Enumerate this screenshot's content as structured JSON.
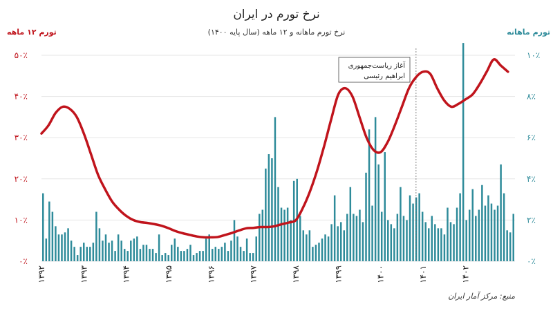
{
  "chart_data": {
    "type": "bar+line",
    "title": "نرخ تورم در ایران",
    "subtitle": "نرخ تورم ماهانه و ۱۲ ماهه (سال پایه ۱۴۰۰)",
    "left_axis_title": "تورم ۱۲ ماهه",
    "right_axis_title": "تورم ماهانه",
    "left_ylim": [
      0,
      50
    ],
    "right_ylim": [
      0,
      10
    ],
    "left_ticks": [
      "۰٪",
      "۱۰٪",
      "۲۰٪",
      "۳۰٪",
      "۴۰٪",
      "۵۰٪"
    ],
    "right_ticks": [
      "۰٪",
      "۲٪",
      "۴٪",
      "۶٪",
      "۸٪",
      "۱۰٪"
    ],
    "x_year_labels": [
      "۱۳۹۲",
      "۱۳۹۳",
      "۱۳۹۴",
      "۱۳۹۵",
      "۱۳۹۶",
      "۱۳۹۷",
      "۱۳۹۸",
      "۱۳۹۹",
      "۱۴۰۰",
      "۱۴۰۱",
      "۱۴۰۲"
    ],
    "x_range_months": [
      0,
      134
    ],
    "series": [
      {
        "type": "bar",
        "axis": "right",
        "values": [
          3.3,
          1.1,
          2.9,
          2.4,
          1.7,
          1.3,
          1.3,
          1.4,
          1.6,
          1.0,
          0.7,
          0.3,
          0.7,
          0.9,
          0.7,
          0.7,
          0.9,
          2.4,
          1.6,
          1.0,
          1.3,
          0.9,
          1.0,
          0.5,
          1.3,
          1.0,
          0.6,
          0.5,
          1.0,
          1.1,
          1.2,
          0.6,
          0.8,
          0.8,
          0.6,
          0.6,
          0.4,
          1.3,
          0.3,
          0.4,
          0.3,
          0.8,
          1.1,
          0.7,
          0.5,
          0.5,
          0.6,
          0.8,
          0.3,
          0.4,
          0.5,
          0.5,
          1.1,
          1.3,
          0.6,
          0.7,
          0.6,
          0.7,
          0.9,
          0.5,
          1.0,
          2.0,
          1.2,
          0.7,
          0.5,
          1.1,
          0.4,
          0.4,
          1.2,
          2.3,
          2.5,
          4.5,
          5.2,
          5.0,
          7.0,
          3.6,
          2.6,
          2.5,
          2.6,
          2.0,
          3.9,
          4.0,
          2.2,
          1.5,
          1.3,
          1.5,
          0.7,
          0.8,
          0.9,
          1.1,
          1.3,
          1.2,
          1.8,
          3.2,
          1.7,
          1.9,
          1.5,
          2.3,
          3.6,
          2.3,
          2.2,
          2.5,
          1.9,
          4.3,
          6.4,
          2.7,
          7.0,
          4.7,
          2.4,
          5.3,
          2.0,
          1.8,
          1.6,
          2.3,
          3.6,
          2.2,
          2.0,
          3.2,
          2.8,
          3.1,
          3.3,
          2.4,
          1.9,
          1.6,
          2.2,
          1.8,
          1.6,
          1.6,
          1.3,
          2.6,
          1.9,
          1.8,
          2.6,
          3.3,
          10.6,
          2.0,
          2.5,
          3.5,
          2.2,
          2.5,
          3.7,
          2.7,
          3.2,
          2.8,
          2.5,
          2.7,
          4.7,
          3.3,
          1.5,
          1.4,
          2.3
        ],
        "color": "#2e8b9a"
      },
      {
        "type": "line",
        "axis": "left",
        "points": [
          [
            0,
            31
          ],
          [
            2,
            33
          ],
          [
            4,
            36
          ],
          [
            6,
            37.5
          ],
          [
            8,
            37
          ],
          [
            10,
            35
          ],
          [
            12,
            31
          ],
          [
            14,
            26
          ],
          [
            16,
            21
          ],
          [
            18,
            17.5
          ],
          [
            20,
            14.5
          ],
          [
            22,
            12.5
          ],
          [
            24,
            11
          ],
          [
            26,
            10
          ],
          [
            28,
            9.5
          ],
          [
            30,
            9.3
          ],
          [
            32,
            9
          ],
          [
            34,
            8.6
          ],
          [
            36,
            8
          ],
          [
            38,
            7.3
          ],
          [
            40,
            6.8
          ],
          [
            42,
            6.4
          ],
          [
            44,
            6
          ],
          [
            46,
            5.8
          ],
          [
            48,
            5.8
          ],
          [
            50,
            5.9
          ],
          [
            52,
            6.4
          ],
          [
            54,
            6.9
          ],
          [
            56,
            7.5
          ],
          [
            58,
            8
          ],
          [
            60,
            8.1
          ],
          [
            62,
            8.3
          ],
          [
            64,
            8.3
          ],
          [
            66,
            8.5
          ],
          [
            68,
            9.0
          ],
          [
            70,
            9.4
          ],
          [
            72,
            10
          ],
          [
            74,
            13
          ],
          [
            76,
            17
          ],
          [
            78,
            22
          ],
          [
            80,
            28
          ],
          [
            82,
            34.5
          ],
          [
            84,
            40.5
          ],
          [
            86,
            42
          ],
          [
            88,
            40
          ],
          [
            90,
            35
          ],
          [
            92,
            30
          ],
          [
            94,
            27
          ],
          [
            96,
            26.5
          ],
          [
            98,
            29
          ],
          [
            100,
            33
          ],
          [
            102,
            37.5
          ],
          [
            104,
            42
          ],
          [
            106,
            44.7
          ],
          [
            108,
            46
          ],
          [
            110,
            45.5
          ],
          [
            112,
            42
          ],
          [
            114,
            39
          ],
          [
            116,
            37.5
          ],
          [
            118,
            38.2
          ],
          [
            120,
            39.3
          ],
          [
            122,
            40.5
          ],
          [
            124,
            43
          ],
          [
            126,
            46
          ],
          [
            128,
            49
          ],
          [
            130,
            47.5
          ],
          [
            132,
            46
          ]
        ],
        "color": "#c0141c"
      }
    ],
    "annotation": {
      "line1": "آغاز ریاست‌جمهوری",
      "line2": "ابراهیم رئیسی",
      "x_month": 106
    },
    "source": "منبع: مرکز آمار ایران",
    "colors": {
      "left_axis": "#c0141c",
      "right_axis": "#2e8b9a",
      "bar": "#2e8b9a",
      "line": "#c0141c"
    }
  }
}
